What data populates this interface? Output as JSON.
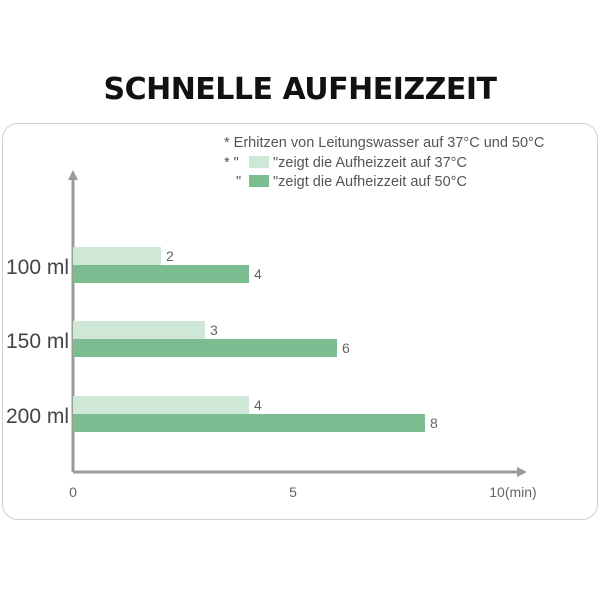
{
  "title": "SCHNELLE AUFHEIZZEIT",
  "colors": {
    "light": "#cfe7d6",
    "dark": "#7bbc91",
    "axis": "#9a9a9a"
  },
  "legend": {
    "note": "* Erhitzen von Leitungswasser auf 37°C und 50°C",
    "light_prefix": "* \"",
    "light_text": "\"zeigt die Aufheizzeit auf 37°C",
    "dark_prefix": "\"",
    "dark_text": "\"zeigt die Aufheizzeit auf 50°C"
  },
  "chart_data": {
    "type": "bar",
    "orientation": "horizontal",
    "categories": [
      "100 ml",
      "150 ml",
      "200 ml"
    ],
    "series": [
      {
        "name": "zeigt die Aufheizzeit auf 37°C",
        "values": [
          2,
          3,
          4
        ],
        "color": "#cfe7d6"
      },
      {
        "name": "zeigt die Aufheizzeit auf 50°C",
        "values": [
          4,
          6,
          8
        ],
        "color": "#7bbc91"
      }
    ],
    "xlim": [
      0,
      10
    ],
    "xticks": [
      {
        "value": 0,
        "label": "0"
      },
      {
        "value": 5,
        "label": "5"
      },
      {
        "value": 10,
        "label": "10(min)"
      }
    ],
    "legend_position": "top-right",
    "grid": false
  }
}
